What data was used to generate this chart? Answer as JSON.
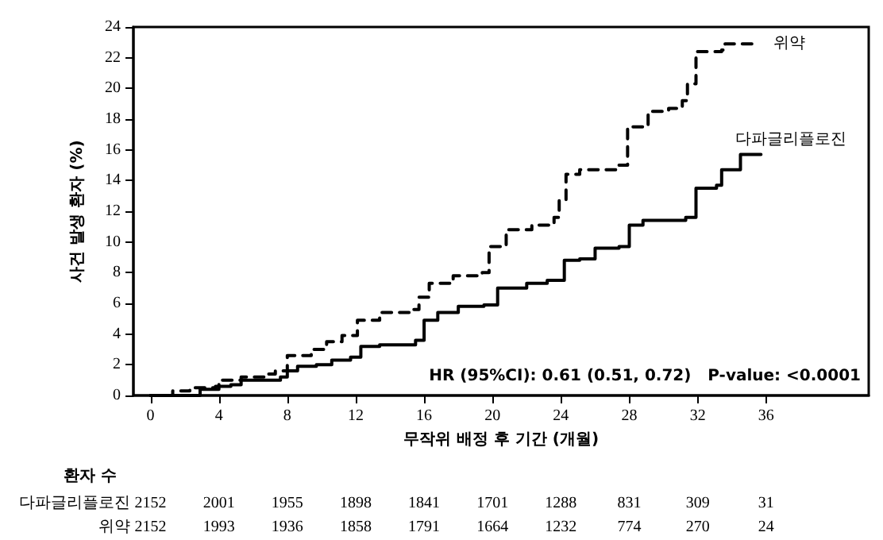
{
  "chart_data": {
    "type": "step",
    "xlabel": "무작위 배정 후 기간 (개월)",
    "ylabel": "사건 발생 환자 (%)",
    "xlim": [
      -1,
      42
    ],
    "xticks": [
      0,
      4,
      8,
      12,
      16,
      20,
      24,
      28,
      32,
      36
    ],
    "ylim": [
      0,
      24
    ],
    "yticks": [
      0,
      2,
      4,
      6,
      8,
      10,
      12,
      14,
      16,
      18,
      20,
      22,
      24
    ],
    "grid": false,
    "legend": false,
    "marker": "none",
    "series": [
      {
        "name": "위약",
        "color": "#000000",
        "line_style": "dashed",
        "x": [
          0,
          1.3,
          2.3,
          3.8,
          4,
          5.3,
          6.9,
          7.3,
          8,
          9.4,
          10.3,
          11.2,
          12.1,
          13.4,
          15.2,
          15.7,
          16.3,
          17.7,
          19.4,
          19.8,
          20.8,
          22.3,
          23.6,
          23.9,
          24.3,
          25.1,
          27.4,
          27.9,
          29.1,
          30.3,
          31.1,
          31.4,
          31.9,
          33.4,
          33.6,
          35.3
        ],
        "values": [
          0,
          0.3,
          0.5,
          0.6,
          1.0,
          1.2,
          1.4,
          1.6,
          2.6,
          3.0,
          3.5,
          3.9,
          4.9,
          5.4,
          5.6,
          6.4,
          7.3,
          7.8,
          8.0,
          9.7,
          10.8,
          11.1,
          11.6,
          12.7,
          14.4,
          14.7,
          15.0,
          17.5,
          18.5,
          18.7,
          19.2,
          20.3,
          22.4,
          22.5,
          22.9,
          22.9
        ]
      },
      {
        "name": "다파글리플로진",
        "color": "#000000",
        "line_style": "solid",
        "x": [
          0,
          2.9,
          4,
          4.7,
          5.3,
          7.6,
          8,
          8.6,
          9.7,
          10.6,
          11.7,
          12.3,
          13.4,
          15.5,
          16,
          16.8,
          18,
          19.5,
          20.3,
          22,
          23.2,
          24.2,
          25.1,
          26,
          27.4,
          28,
          28.8,
          31.3,
          31.9,
          33.1,
          33.4,
          34.3,
          34.5,
          35.7
        ],
        "values": [
          0,
          0.4,
          0.6,
          0.7,
          1.0,
          1.2,
          1.6,
          1.9,
          2.0,
          2.3,
          2.5,
          3.2,
          3.3,
          3.6,
          4.9,
          5.4,
          5.8,
          5.9,
          7.0,
          7.3,
          7.5,
          8.8,
          8.9,
          9.6,
          9.7,
          11.1,
          11.4,
          11.6,
          13.5,
          13.7,
          14.7,
          14.7,
          15.7,
          15.7
        ]
      }
    ],
    "annotations": [
      "HR (95%CI): 0.61 (0.51, 0.72)   P-value: <0.0001",
      "환자 수",
      "다파글리플로진 2152 2001 1955 1898 1841 1701 1288 831 309 31",
      "위약 2152 1993 1936 1858 1791 1664 1232 774 270 24"
    ]
  }
}
